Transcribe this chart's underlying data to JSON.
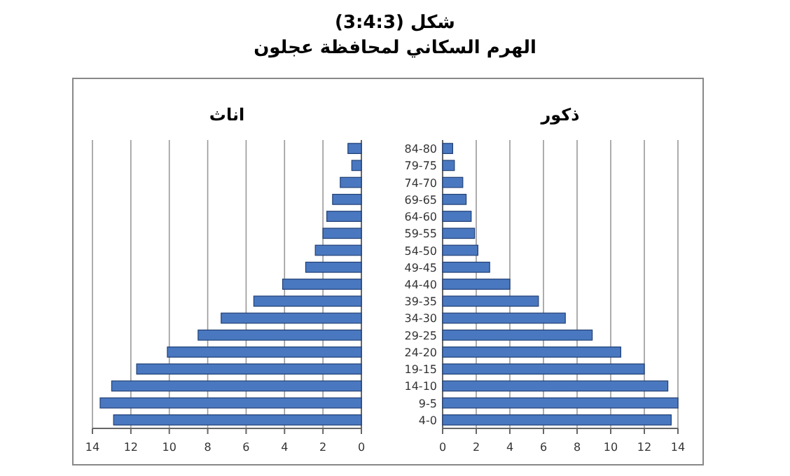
{
  "chart_data": [
    {
      "type": "bar",
      "orientation": "horizontal",
      "title": "شكل (3:4:3)",
      "subtitle": "الهرم السكاني لمحافظة عجلون",
      "xlabel": "اناث",
      "tick_labels": "x",
      "grid": "x",
      "color": "#4a78c0",
      "categories": [
        null,
        null,
        null,
        null,
        null,
        null,
        null,
        null,
        null,
        null,
        null,
        null,
        null,
        null,
        null,
        null,
        null
      ],
      "values": [
        0.7,
        0.5,
        1.1,
        1.5,
        1.8,
        2.0,
        2.4,
        2.9,
        4.1,
        5.6,
        7.3,
        8.5,
        10.1,
        11.7,
        13.0,
        13.6,
        12.9
      ],
      "xlim": [
        14,
        0
      ],
      "xticks": [
        14,
        12,
        10,
        8,
        6,
        4,
        2,
        0
      ]
    },
    {
      "type": "bar",
      "orientation": "horizontal",
      "xlabel": "ذكور",
      "grid": "x",
      "color": "#4a78c0",
      "categories": [
        "84-80",
        "79-75",
        "74-70",
        "69-65",
        "64-60",
        "59-55",
        "54-50",
        "49-45",
        "44-40",
        "39-35",
        "34-30",
        "29-25",
        "24-20",
        "19-15",
        "14-10",
        "9-5",
        "4-0"
      ],
      "values": [
        0.6,
        0.7,
        1.2,
        1.4,
        1.7,
        1.9,
        2.1,
        2.8,
        4.0,
        5.7,
        7.3,
        8.9,
        10.6,
        12.0,
        13.4,
        14.0,
        13.6
      ],
      "xlim": [
        0,
        14
      ],
      "xticks": [
        0,
        2,
        4,
        6,
        8,
        10,
        12,
        14
      ]
    }
  ]
}
